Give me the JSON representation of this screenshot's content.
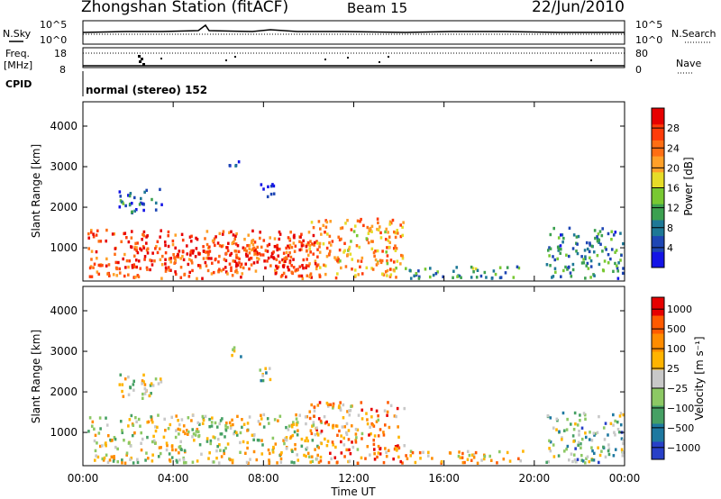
{
  "header": {
    "station": "Zhongshan Station (fitACF)",
    "beam": "Beam 15",
    "date": "22/Jun/2010"
  },
  "top_panels": {
    "nsky_label": "N.Sky",
    "nsearch_label": "N.Search",
    "exp_high": "10^5",
    "exp_low": "10^0",
    "freq_label_line1": "Freq.",
    "freq_label_line2": "[MHz]",
    "freq_top": "18",
    "freq_bottom": "8",
    "nave_top": "80",
    "nave_bottom": "0",
    "nave_label": "Nave",
    "cpid_label": "CPID",
    "cpid_text": "normal (stereo) 152"
  },
  "chart_data": [
    {
      "type": "heatmap",
      "title": "",
      "xlabel": "",
      "ylabel": "Slant Range [km]",
      "xlim": [
        "00:00",
        "24:00"
      ],
      "ylim": [
        180,
        4600
      ],
      "x_ticks": [
        "00:00",
        "04:00",
        "08:00",
        "12:00",
        "16:00",
        "20:00",
        "00:00"
      ],
      "y_ticks": [
        1000,
        2000,
        3000,
        4000
      ],
      "colorbar": {
        "label": "Power [dB]",
        "ticks": [
          "4",
          "8",
          "12",
          "16",
          "20",
          "24",
          "28"
        ],
        "colors": [
          "#1414e6",
          "#1e46b4",
          "#1e7896",
          "#3ca050",
          "#78c832",
          "#e6dc28",
          "#ffa028",
          "#ff6e14",
          "#ff3c0a",
          "#e60000"
        ]
      },
      "regions": [
        {
          "t0": 0.2,
          "t1": 10.5,
          "r0": 200,
          "r1": 1400,
          "weight": 0.85
        },
        {
          "t0": 2.0,
          "t1": 10.0,
          "r0": 400,
          "r1": 1000,
          "weight": 0.95
        },
        {
          "t0": 10.0,
          "t1": 14.2,
          "r0": 200,
          "r1": 1700,
          "weight": 0.7
        },
        {
          "t0": 14.0,
          "t1": 19.5,
          "r0": 200,
          "r1": 500,
          "weight": 0.3
        },
        {
          "t0": 20.5,
          "t1": 23.9,
          "r0": 200,
          "r1": 1450,
          "weight": 0.25
        },
        {
          "t0": 1.5,
          "t1": 3.5,
          "r0": 1800,
          "r1": 2400,
          "weight": 0.2
        },
        {
          "t0": 6.4,
          "t1": 7.0,
          "r0": 2800,
          "r1": 3100,
          "weight": 0.05
        },
        {
          "t0": 7.8,
          "t1": 8.6,
          "r0": 2200,
          "r1": 2600,
          "weight": 0.05
        }
      ]
    },
    {
      "type": "heatmap",
      "title": "",
      "xlabel": "Time UT",
      "ylabel": "Slant Range [km]",
      "xlim": [
        "00:00",
        "24:00"
      ],
      "ylim": [
        180,
        4600
      ],
      "x_ticks": [
        "00:00",
        "04:00",
        "08:00",
        "12:00",
        "16:00",
        "20:00",
        "00:00"
      ],
      "y_ticks": [
        1000,
        2000,
        3000,
        4000
      ],
      "colorbar": {
        "label": "Velocity [m s⁻¹]",
        "ticks": [
          "1000",
          "500",
          "100",
          "25",
          "−25",
          "−100",
          "−500",
          "−1000"
        ],
        "colors": [
          "#2840c8",
          "#1e78a0",
          "#46a064",
          "#8cc864",
          "#c8c8c8",
          "#ffb400",
          "#ff8c00",
          "#ff5a00",
          "#e60000"
        ]
      },
      "regions": [
        {
          "t0": 0.2,
          "t1": 10.5,
          "r0": 200,
          "r1": 1400,
          "weight": 0.0
        },
        {
          "t0": 10.0,
          "t1": 14.2,
          "r0": 200,
          "r1": 1700,
          "weight": -0.6
        },
        {
          "t0": 14.0,
          "t1": 19.5,
          "r0": 200,
          "r1": 500,
          "weight": -0.3
        },
        {
          "t0": 20.5,
          "t1": 23.9,
          "r0": 200,
          "r1": 1450,
          "weight": 0.4
        },
        {
          "t0": 1.5,
          "t1": 3.5,
          "r0": 1800,
          "r1": 2400,
          "weight": 0.1
        },
        {
          "t0": 6.4,
          "t1": 7.0,
          "r0": 2800,
          "r1": 3100,
          "weight": 0.2
        },
        {
          "t0": 7.8,
          "t1": 8.6,
          "r0": 2200,
          "r1": 2600,
          "weight": 0.15
        }
      ]
    }
  ]
}
